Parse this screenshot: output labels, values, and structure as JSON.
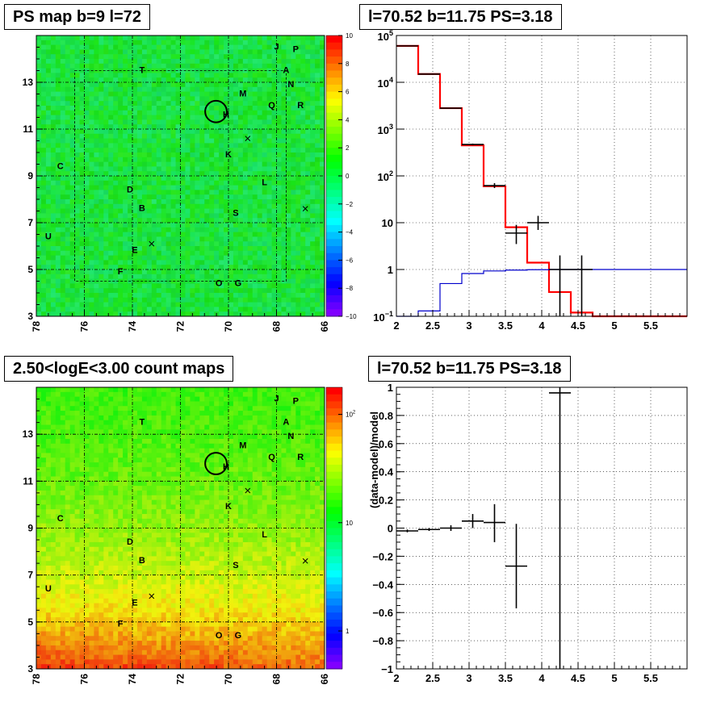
{
  "titles": {
    "top_left": "PS map b=9 l=72",
    "top_right": "l=70.52 b=11.75 PS=3.18",
    "bottom_left": "2.50<logE<3.00 count maps",
    "bottom_right": "l=70.52 b=11.75 PS=3.18"
  },
  "colors": {
    "data": "#000000",
    "model_total": "#ff0000",
    "model_source": "#0000cc",
    "grid": "#000000"
  },
  "chart_data": [
    {
      "id": "ps_map",
      "type": "heatmap",
      "title": "PS map b=9 l=72",
      "x_axis": {
        "range": [
          78,
          66
        ],
        "reversed": true,
        "ticks": [
          "78",
          "76",
          "74",
          "72",
          "70",
          "68",
          "66"
        ]
      },
      "y_axis": {
        "range": [
          3,
          15
        ],
        "ticks": [
          "3",
          "5",
          "7",
          "9",
          "11",
          "13"
        ]
      },
      "colorbar": {
        "range": [
          -10,
          10
        ],
        "ticks": [
          "10",
          "8",
          "6",
          "4",
          "2",
          "0",
          "−2",
          "−4",
          "−6",
          "−8",
          "−10"
        ]
      },
      "grid": true,
      "labels": [
        {
          "text": "J",
          "l": 68.0,
          "b": 14.4
        },
        {
          "text": "P",
          "l": 67.2,
          "b": 14.3
        },
        {
          "text": "T",
          "l": 73.6,
          "b": 13.4
        },
        {
          "text": "A",
          "l": 67.6,
          "b": 13.4
        },
        {
          "text": "N",
          "l": 67.4,
          "b": 12.8
        },
        {
          "text": "M",
          "l": 69.4,
          "b": 12.4
        },
        {
          "text": "Q",
          "l": 68.2,
          "b": 11.9
        },
        {
          "text": "R",
          "l": 67.0,
          "b": 11.9
        },
        {
          "text": "H",
          "l": 70.1,
          "b": 11.5
        },
        {
          "text": "K",
          "l": 70.0,
          "b": 9.8
        },
        {
          "text": "C",
          "l": 77.0,
          "b": 9.3
        },
        {
          "text": "L",
          "l": 68.5,
          "b": 8.6
        },
        {
          "text": "D",
          "l": 74.1,
          "b": 8.3
        },
        {
          "text": "B",
          "l": 73.6,
          "b": 7.5
        },
        {
          "text": "S",
          "l": 69.7,
          "b": 7.3
        },
        {
          "text": "U",
          "l": 77.5,
          "b": 6.3
        },
        {
          "text": "E",
          "l": 73.9,
          "b": 5.7
        },
        {
          "text": "F",
          "l": 74.5,
          "b": 4.8
        },
        {
          "text": "O",
          "l": 70.4,
          "b": 4.3
        },
        {
          "text": "G",
          "l": 69.6,
          "b": 4.3
        }
      ],
      "crosses": [
        {
          "l": 69.2,
          "b": 10.6
        },
        {
          "l": 66.8,
          "b": 7.6
        },
        {
          "l": 73.2,
          "b": 6.1
        }
      ],
      "circle": {
        "l": 70.52,
        "b": 11.75,
        "radius_deg": 0.45
      }
    },
    {
      "id": "spectrum",
      "type": "line",
      "title": "l=70.52 b=11.75 PS=3.18",
      "x_axis": {
        "range": [
          2,
          6
        ],
        "ticks": [
          "2",
          "2.5",
          "3",
          "3.5",
          "4",
          "4.5",
          "5",
          "5.5"
        ]
      },
      "y_axis": {
        "range": [
          0.1,
          100000
        ],
        "scale": "log",
        "ticks": [
          {
            "v": 0.1,
            "base": "10",
            "exp": "−1"
          },
          {
            "v": 1,
            "label": "1"
          },
          {
            "v": 10,
            "label": "10"
          },
          {
            "v": 100,
            "base": "10",
            "exp": "2"
          },
          {
            "v": 1000,
            "base": "10",
            "exp": "3"
          },
          {
            "v": 10000,
            "base": "10",
            "exp": "4"
          },
          {
            "v": 100000,
            "base": "10",
            "exp": "5"
          }
        ]
      },
      "grid": true,
      "series": [
        {
          "style": "model_total",
          "kind": "step",
          "edges": [
            2.0,
            2.3,
            2.6,
            2.9,
            3.2,
            3.5,
            3.8,
            4.1,
            4.4,
            4.7,
            6.0
          ],
          "values": [
            60000,
            15000,
            2800,
            450,
            60,
            8,
            1.4,
            0.33,
            0.12,
            0.1
          ]
        },
        {
          "style": "model_source",
          "kind": "step",
          "edges": [
            2.0,
            2.3,
            2.6,
            2.9,
            3.2,
            3.5,
            3.8,
            4.1,
            4.4,
            4.7,
            6.0
          ],
          "values": [
            0.1,
            0.13,
            0.5,
            0.82,
            0.93,
            0.97,
            0.99,
            1.0,
            1.0,
            1.0
          ]
        },
        {
          "style": "data",
          "kind": "points",
          "points": [
            {
              "x": 2.15,
              "y": 60000,
              "xerr": 0.15,
              "ylo": 59800,
              "yhi": 60200
            },
            {
              "x": 2.45,
              "y": 15000,
              "xerr": 0.15,
              "ylo": 14900,
              "yhi": 15100
            },
            {
              "x": 2.75,
              "y": 2800,
              "xerr": 0.15,
              "ylo": 2750,
              "yhi": 2850
            },
            {
              "x": 3.05,
              "y": 470,
              "xerr": 0.15,
              "ylo": 450,
              "yhi": 490
            },
            {
              "x": 3.35,
              "y": 62,
              "xerr": 0.15,
              "ylo": 55,
              "yhi": 70
            },
            {
              "x": 3.65,
              "y": 6,
              "xerr": 0.15,
              "ylo": 3.5,
              "yhi": 9
            },
            {
              "x": 3.95,
              "y": 10,
              "xerr": 0.15,
              "ylo": 7,
              "yhi": 14
            },
            {
              "x": 4.25,
              "y": 1,
              "xerr": 0.15,
              "ylo": 0.1,
              "yhi": 2
            },
            {
              "x": 4.55,
              "y": 1,
              "xerr": 0.15,
              "ylo": 0.1,
              "yhi": 2
            }
          ]
        }
      ]
    },
    {
      "id": "count_map",
      "type": "heatmap",
      "title": "2.50<logE<3.00 count maps",
      "x_axis": {
        "range": [
          78,
          66
        ],
        "reversed": true,
        "ticks": [
          "78",
          "76",
          "74",
          "72",
          "70",
          "68",
          "66"
        ]
      },
      "y_axis": {
        "range": [
          3,
          15
        ],
        "ticks": [
          "3",
          "5",
          "7",
          "9",
          "11",
          "13"
        ]
      },
      "colorbar": {
        "scale": "log",
        "ticks": [
          {
            "v": 1,
            "label": "1"
          },
          {
            "v": 10,
            "label": "10"
          },
          {
            "v": 100,
            "base": "10",
            "exp": "2"
          }
        ]
      },
      "grid": true
    },
    {
      "id": "residuals",
      "type": "scatter",
      "title": "l=70.52 b=11.75 PS=3.18",
      "ylabel": "(data-model)/model",
      "x_axis": {
        "range": [
          2,
          6
        ],
        "ticks": [
          "2",
          "2.5",
          "3",
          "3.5",
          "4",
          "4.5",
          "5",
          "5.5"
        ]
      },
      "y_axis": {
        "range": [
          -1,
          1
        ],
        "ticks": [
          "1",
          "0.8",
          "0.6",
          "0.4",
          "0.2",
          "0",
          "−0.2",
          "−0.4",
          "−0.6",
          "−0.8",
          "−1"
        ]
      },
      "grid": true,
      "points": [
        {
          "x": 2.15,
          "y": -0.02,
          "xerr": 0.15,
          "ylo": -0.03,
          "yhi": -0.01
        },
        {
          "x": 2.45,
          "y": -0.01,
          "xerr": 0.15,
          "ylo": -0.02,
          "yhi": 0.0
        },
        {
          "x": 2.75,
          "y": 0.0,
          "xerr": 0.15,
          "ylo": -0.02,
          "yhi": 0.02
        },
        {
          "x": 3.05,
          "y": 0.05,
          "xerr": 0.15,
          "ylo": 0.0,
          "yhi": 0.1
        },
        {
          "x": 3.35,
          "y": 0.04,
          "xerr": 0.15,
          "ylo": -0.1,
          "yhi": 0.17
        },
        {
          "x": 3.65,
          "y": -0.27,
          "xerr": 0.15,
          "ylo": -0.57,
          "yhi": 0.03
        },
        {
          "x": 4.25,
          "y": 0.96,
          "xerr": 0.15,
          "ylo": -1.0,
          "yhi": 1.0
        }
      ]
    }
  ]
}
